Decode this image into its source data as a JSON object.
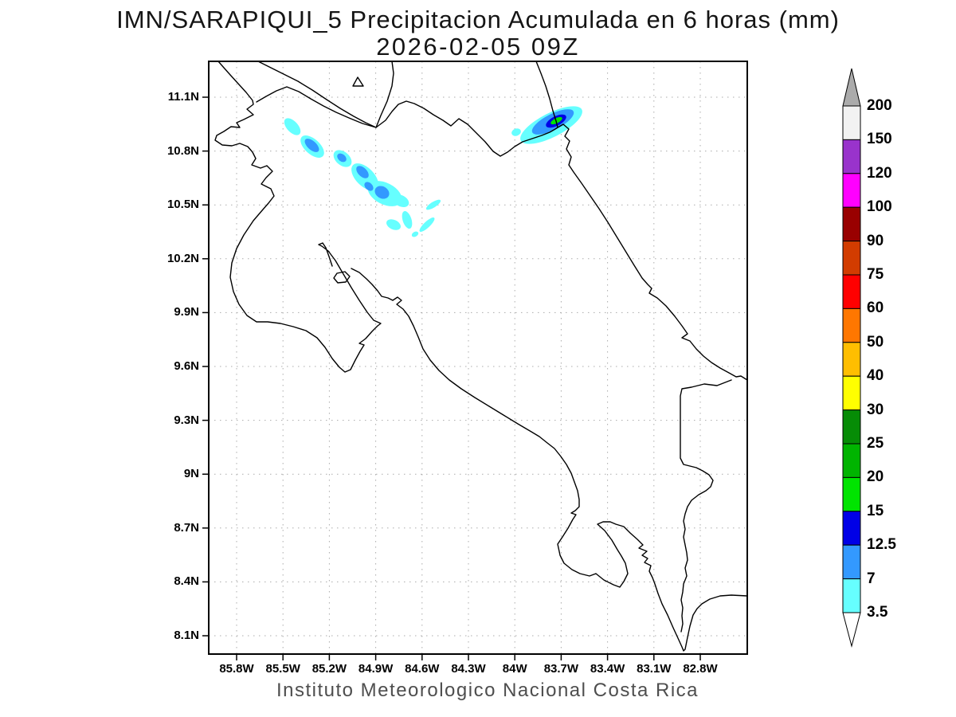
{
  "header": {
    "title_line1": "IMN/SARAPIQUI_5 Precipitacion Acumulada en 6 horas (mm)",
    "title_line2": "2026-02-05 09Z"
  },
  "footer": {
    "credit": "Instituto Meteorologico Nacional Costa Rica"
  },
  "axes": {
    "lat_ticks_top_to_bottom": [
      "11.1N",
      "10.8N",
      "10.5N",
      "10.2N",
      "9.9N",
      "9.6N",
      "9.3N",
      "9N",
      "8.7N",
      "8.4N",
      "8.1N"
    ],
    "lon_ticks_left_to_right": [
      "85.8W",
      "85.5W",
      "85.2W",
      "84.9W",
      "84.6W",
      "84.3W",
      "84W",
      "83.7W",
      "83.4W",
      "83.1W",
      "82.8W"
    ]
  },
  "colorbar": {
    "unit": "mm",
    "levels_low_to_high": [
      "3.5",
      "7",
      "12.5",
      "15",
      "20",
      "25",
      "30",
      "40",
      "50",
      "60",
      "75",
      "90",
      "100",
      "120",
      "150",
      "200"
    ],
    "segment_colors_low_to_high": [
      "#66FFFF",
      "#3399FF",
      "#0000E6",
      "#00E400",
      "#00B400",
      "#068C06",
      "#FFFF00",
      "#FFBE00",
      "#FF7700",
      "#FF0000",
      "#D23C00",
      "#990000",
      "#FF00FF",
      "#9933CC",
      "#F2F2F2"
    ],
    "above_max_color": "#ABABAB",
    "below_min_color": "#FFFFFF"
  },
  "chart_data": {
    "type": "heatmap",
    "title": "IMN/SARAPIQUI_5 Precipitacion Acumulada en 6 horas (mm)",
    "subtitle": "2026-02-05 09Z",
    "xlabel": "",
    "ylabel": "",
    "units": "mm",
    "region": "Costa Rica",
    "projection": "lat-lon",
    "x_ticks": [
      "85.8W",
      "85.5W",
      "85.2W",
      "84.9W",
      "84.6W",
      "84.3W",
      "84W",
      "83.7W",
      "83.4W",
      "83.1W",
      "82.8W"
    ],
    "y_ticks": [
      "11.1N",
      "10.8N",
      "10.5N",
      "10.2N",
      "9.9N",
      "9.6N",
      "9.3N",
      "9N",
      "8.7N",
      "8.4N",
      "8.1N"
    ],
    "xlim": [
      "86.0W",
      "82.5W"
    ],
    "ylim": [
      "8.0N",
      "11.3N"
    ],
    "grid": true,
    "legend_position": "right",
    "levels_mm": [
      3.5,
      7,
      12.5,
      15,
      20,
      25,
      30,
      40,
      50,
      60,
      75,
      90,
      100,
      120,
      150,
      200
    ],
    "cells": [
      {
        "name": "caribbean-coast-cell",
        "lon": "83.75W",
        "lat": "10.95N",
        "peak_band_mm": "15-20",
        "shape": "elongated SW-NE, crossing coastline near San Juan river mouth"
      },
      {
        "name": "guanacaste-cell-1",
        "lon": "85.45W",
        "lat": "10.94N",
        "peak_band_mm": "3.5-7"
      },
      {
        "name": "guanacaste-cell-2",
        "lon": "85.32W",
        "lat": "10.83N",
        "peak_band_mm": "7-12.5"
      },
      {
        "name": "guanacaste-cell-3",
        "lon": "85.13W",
        "lat": "10.76N",
        "peak_band_mm": "7-12.5"
      },
      {
        "name": "guanacaste-cell-4",
        "lon": "84.97W",
        "lat": "10.66N",
        "peak_band_mm": "7-12.5"
      },
      {
        "name": "guanacaste-cell-5",
        "lon": "84.86W",
        "lat": "10.57N",
        "peak_band_mm": "7-12.5"
      },
      {
        "name": "scattered-light-cells",
        "lon": "84.65W",
        "lat": "10.38N",
        "peak_band_mm": "3.5-7"
      }
    ]
  }
}
